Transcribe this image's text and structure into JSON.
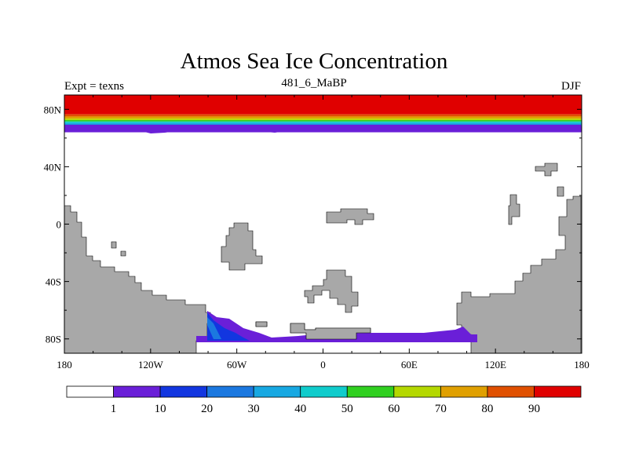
{
  "chart_data": {
    "type": "heatmap",
    "title": "Atmos Sea Ice Concentration",
    "subtitle_left": "Expt = texns",
    "subtitle_center": "481_6_MaBP",
    "subtitle_right": "DJF",
    "x_ticks": [
      "180",
      "120W",
      "60W",
      "0",
      "60E",
      "120E",
      "180"
    ],
    "y_ticks": [
      "80N",
      "40N",
      "0",
      "40S",
      "80S"
    ],
    "xlim": [
      -180,
      180
    ],
    "ylim": [
      -90,
      90
    ],
    "contour_levels": [
      1,
      10,
      20,
      30,
      40,
      50,
      60,
      70,
      80,
      90
    ],
    "colorbar_labels": [
      "1",
      "10",
      "20",
      "30",
      "40",
      "50",
      "60",
      "70",
      "80",
      "90"
    ],
    "colorbar_colors": [
      "#ffffff",
      "#6a1fd8",
      "#1236e0",
      "#1b78e0",
      "#17a8e2",
      "#10cccc",
      "#30d020",
      "#b4d800",
      "#e0a000",
      "#e05000",
      "#e00000"
    ],
    "land_color": "#a8a8a8",
    "north_bands": [
      {
        "lat": 90,
        "color": "#e00000"
      },
      {
        "lat": 76.5,
        "color": "#e05000"
      },
      {
        "lat": 75,
        "color": "#e0a000"
      },
      {
        "lat": 73.5,
        "color": "#b4d800"
      },
      {
        "lat": 72.5,
        "color": "#30d020"
      },
      {
        "lat": 71.5,
        "color": "#10cccc"
      },
      {
        "lat": 70.5,
        "color": "#17a8e2"
      },
      {
        "lat": 69.5,
        "color": "#1b78e0"
      },
      {
        "lat": 68.5,
        "color": "#1236e0"
      },
      {
        "lat": 67.8,
        "color": "#6a1fd8"
      }
    ],
    "north_edge_lat": 64
  }
}
